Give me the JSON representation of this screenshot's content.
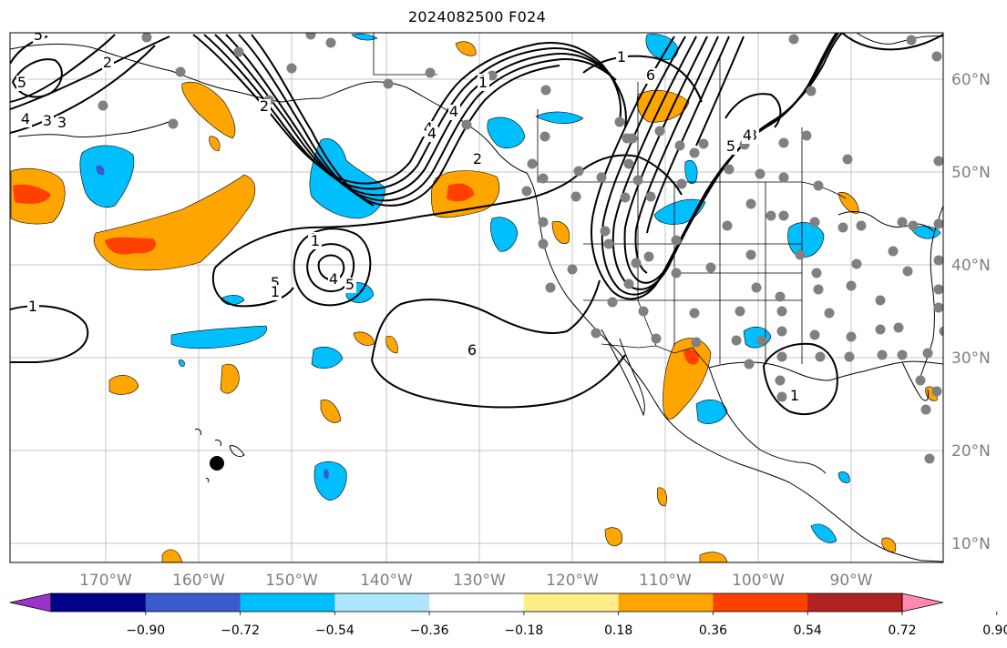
{
  "title": "2024082500 F024",
  "lon_labels": [
    "170°W",
    "160°W",
    "150°W",
    "140°W",
    "130°W",
    "120°W",
    "110°W",
    "100°W",
    "90°W"
  ],
  "lat_labels": [
    "60°N",
    "50°N",
    "40°N",
    "30°N",
    "20°N",
    "10°N"
  ],
  "colorbar": {
    "tick_labels": [
      "−0.90",
      "−0.72",
      "−0.54",
      "−0.36",
      "−0.18",
      "0.18",
      "0.36",
      "0.54",
      "0.72",
      "0.90"
    ],
    "colors": [
      "#9933cc",
      "#00008b",
      "#3a5bcc",
      "#00bfff",
      "#aee6ff",
      "#ffffff",
      "#ffee88",
      "#ffa500",
      "#ff4000",
      "#b22222",
      "#ff88b0"
    ]
  },
  "contour_labels": [
    "5",
    "2",
    "5",
    "3",
    "4",
    "3",
    "6",
    "1",
    "4",
    "2",
    "1",
    "4",
    "2",
    "5",
    "1",
    "6",
    "4",
    "5",
    "2",
    "1",
    "1",
    "1",
    "1",
    "4",
    "2",
    "5",
    "3",
    "4",
    "1"
  ],
  "colors": {
    "orange": "#ffa500",
    "red_orange": "#ff4000",
    "sky_blue": "#00bfff",
    "medium_blue": "#3a5bcc",
    "station_dot": "#808080",
    "grid": "#bdbdbd",
    "axis_label": "#7f7f7f"
  }
}
